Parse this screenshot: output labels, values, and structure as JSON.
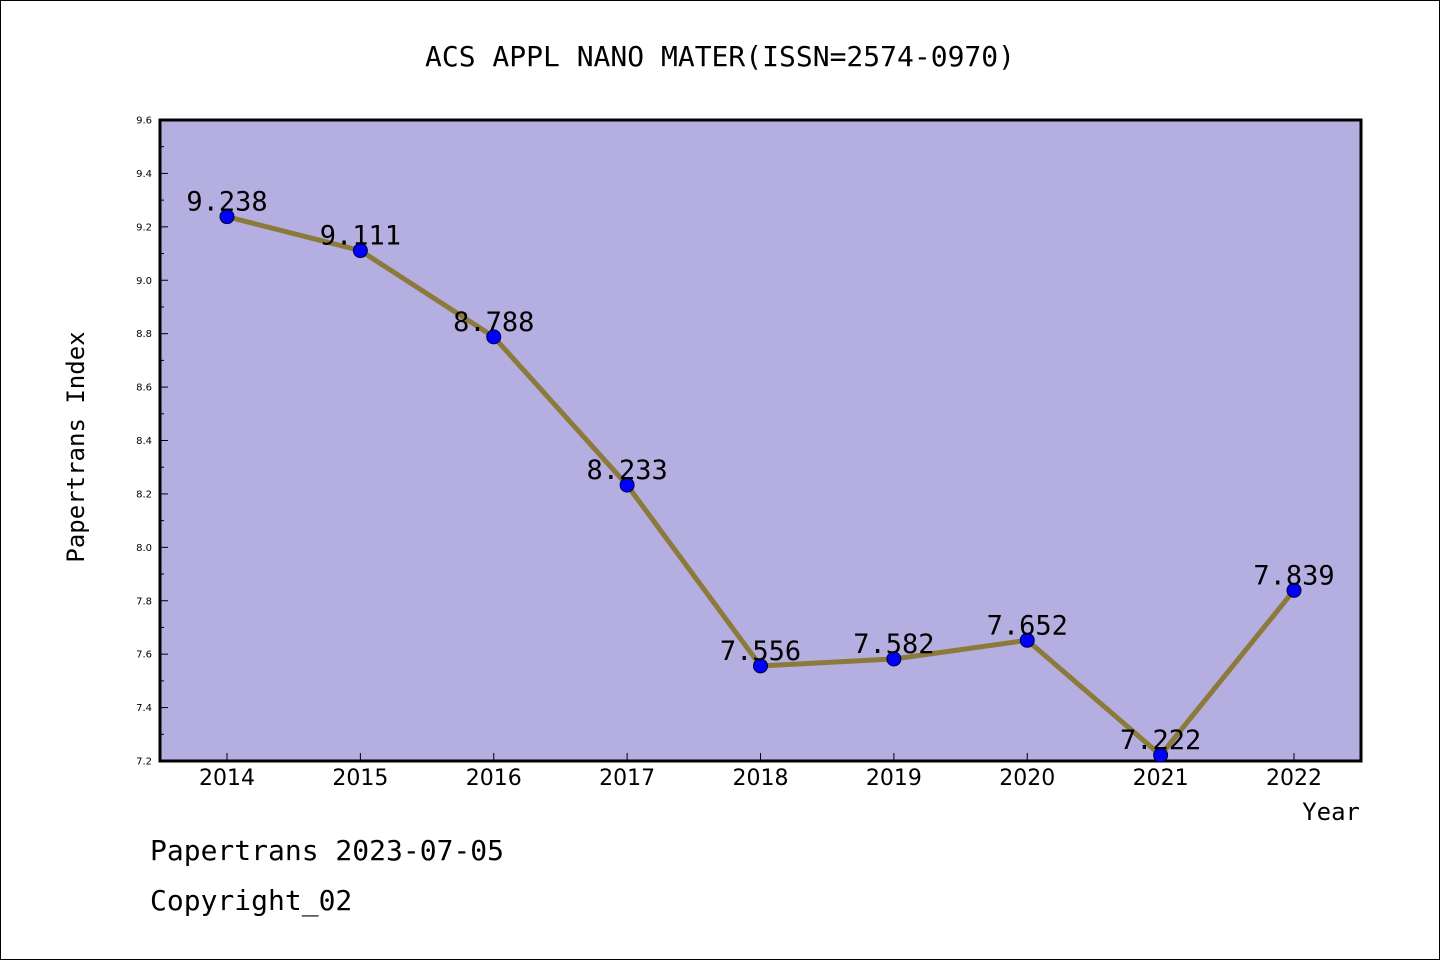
{
  "chart_data": {
    "type": "line",
    "title": "ACS APPL NANO MATER(ISSN=2574-0970)",
    "xlabel": "Year",
    "ylabel": "Papertrans Index",
    "categories": [
      "2014",
      "2015",
      "2016",
      "2017",
      "2018",
      "2019",
      "2020",
      "2021",
      "2022"
    ],
    "series": [
      {
        "values": [
          9.238,
          9.111,
          8.788,
          8.233,
          7.556,
          7.582,
          7.652,
          7.222,
          7.839
        ],
        "labels": [
          "9.238",
          "9.111",
          "8.788",
          "8.233",
          "7.556",
          "7.582",
          "7.652",
          "7.222",
          "7.839"
        ]
      }
    ],
    "ylim": [
      7.2,
      9.6
    ],
    "yticks": [
      "7.2",
      "7.4",
      "7.6",
      "7.8",
      "8.0",
      "8.2",
      "8.4",
      "8.6",
      "8.8",
      "9.0",
      "9.2",
      "9.4",
      "9.6"
    ],
    "grid": false,
    "legend": "none",
    "colors": {
      "plot_background": "#b5aee1",
      "line": "#8b7a3a",
      "marker": "#0000ff"
    }
  },
  "footer": {
    "line1": "Papertrans 2023-07-05",
    "line2": "Copyright_02"
  }
}
